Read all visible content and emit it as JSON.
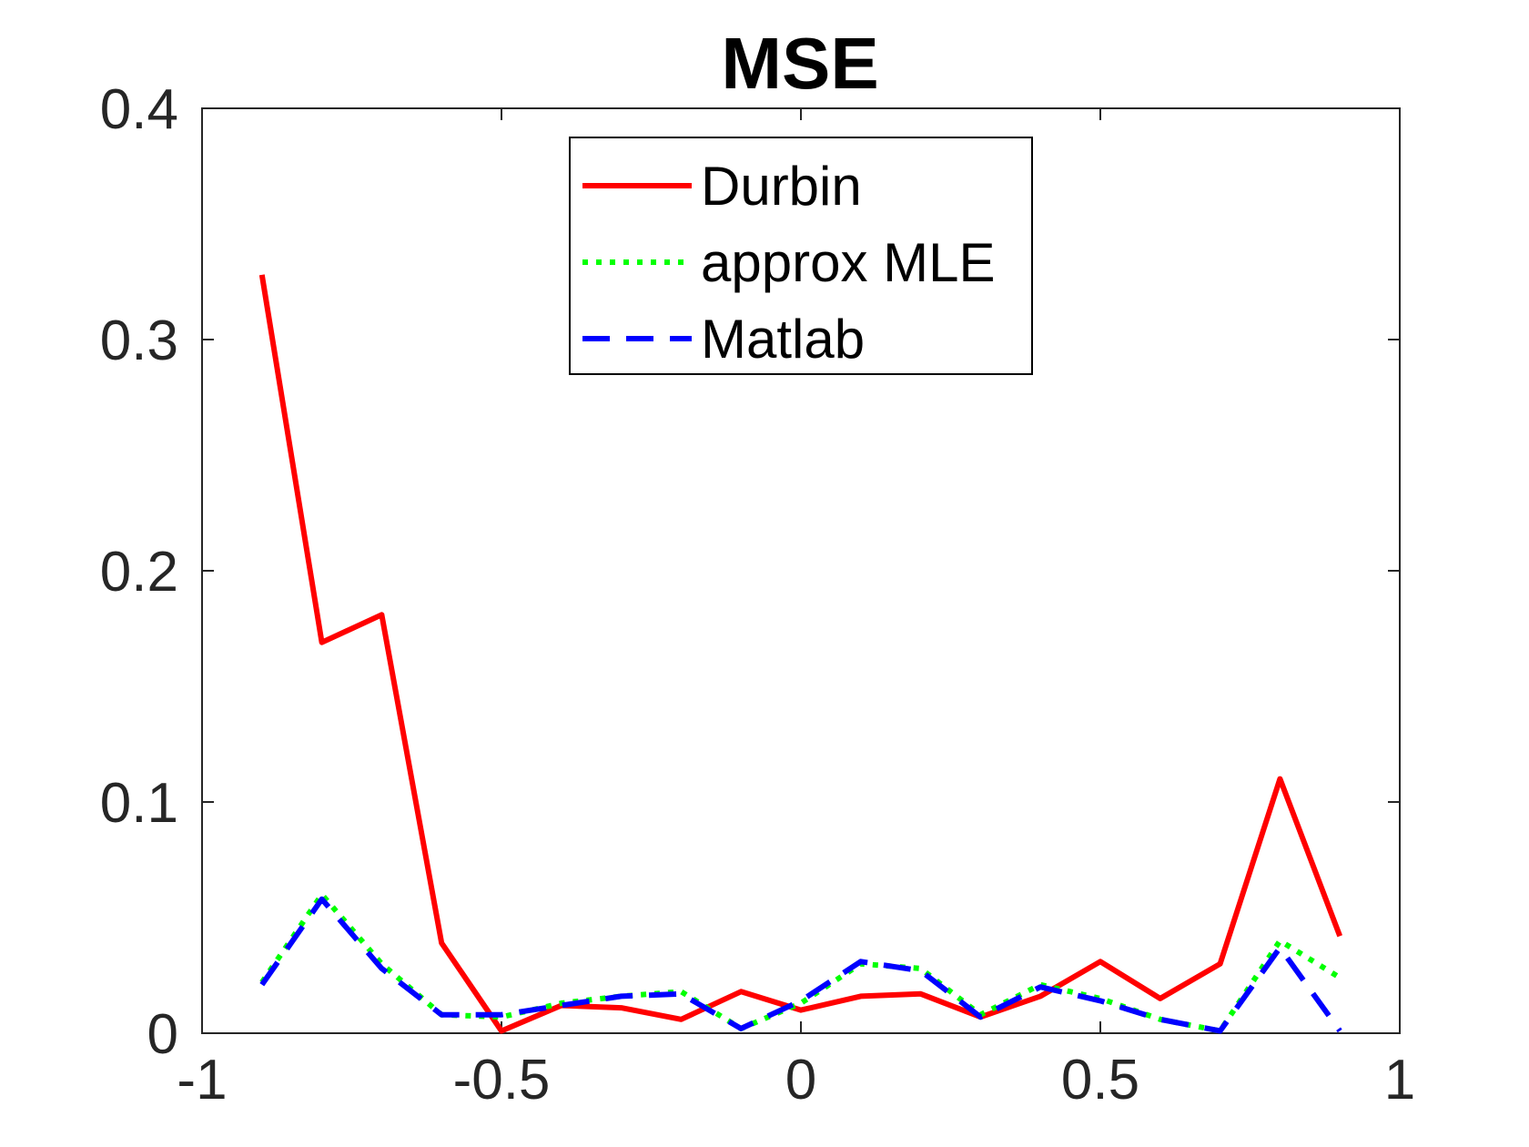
{
  "chart_data": {
    "type": "line",
    "title": "MSE",
    "xlabel": "",
    "ylabel": "",
    "xlim": [
      -1,
      1
    ],
    "ylim": [
      0,
      0.4
    ],
    "xticks": [
      -1,
      -0.5,
      0,
      0.5,
      1
    ],
    "xtick_labels": [
      "-1",
      "-0.5",
      "0",
      "0.5",
      "1"
    ],
    "yticks": [
      0,
      0.1,
      0.2,
      0.3,
      0.4
    ],
    "ytick_labels": [
      "0",
      "0.1",
      "0.2",
      "0.3",
      "0.4"
    ],
    "grid": false,
    "legend_position": "top-center",
    "x": [
      -0.9,
      -0.8,
      -0.7,
      -0.6,
      -0.5,
      -0.4,
      -0.3,
      -0.2,
      -0.1,
      0,
      0.1,
      0.2,
      0.3,
      0.4,
      0.5,
      0.6,
      0.7,
      0.8,
      0.9
    ],
    "series": [
      {
        "name": "Durbin",
        "color": "#ff0000",
        "style": "solid",
        "values": [
          0.328,
          0.169,
          0.181,
          0.039,
          0.001,
          0.012,
          0.011,
          0.006,
          0.018,
          0.01,
          0.016,
          0.017,
          0.007,
          0.016,
          0.031,
          0.015,
          0.03,
          0.11,
          0.042
        ]
      },
      {
        "name": "approx MLE",
        "color": "#00ff00",
        "style": "dotted",
        "values": [
          0.022,
          0.06,
          0.03,
          0.008,
          0.007,
          0.013,
          0.016,
          0.018,
          0.002,
          0.013,
          0.03,
          0.028,
          0.008,
          0.021,
          0.015,
          0.006,
          0.001,
          0.04,
          0.024
        ]
      },
      {
        "name": "Matlab",
        "color": "#0000ff",
        "style": "dashed",
        "values": [
          0.021,
          0.058,
          0.028,
          0.008,
          0.008,
          0.012,
          0.016,
          0.017,
          0.002,
          0.014,
          0.031,
          0.027,
          0.007,
          0.02,
          0.014,
          0.006,
          0.001,
          0.037,
          0.001
        ]
      }
    ]
  }
}
